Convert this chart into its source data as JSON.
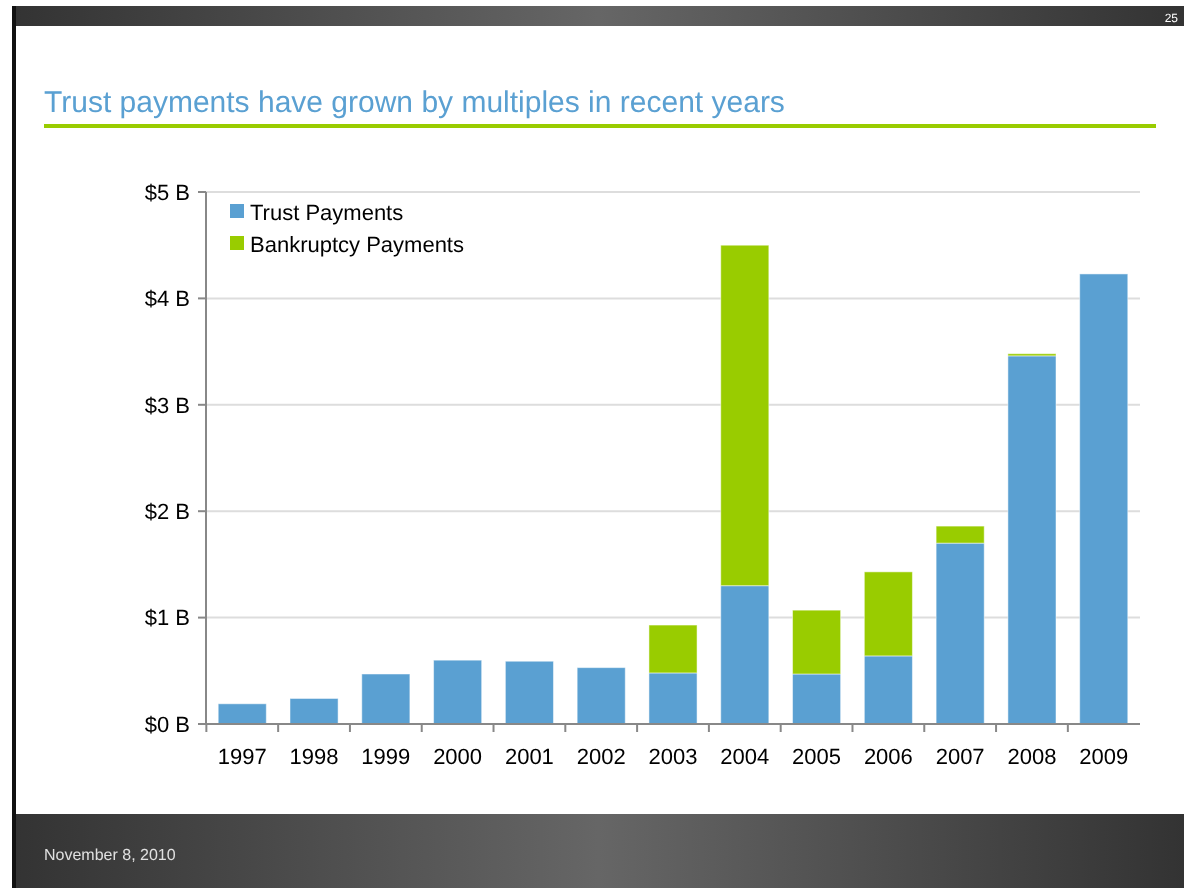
{
  "chart_data": {
    "type": "bar",
    "title": "Trust payments have grown by multiples in recent years",
    "categories": [
      "1997",
      "1998",
      "1999",
      "2000",
      "2001",
      "2002",
      "2003",
      "2004",
      "2005",
      "2006",
      "2007",
      "2008",
      "2009"
    ],
    "series": [
      {
        "name": "Trust Payments",
        "color": "#5aa0d2",
        "values": [
          0.19,
          0.24,
          0.47,
          0.6,
          0.59,
          0.53,
          0.48,
          1.3,
          0.47,
          0.64,
          1.7,
          3.46,
          4.23
        ]
      },
      {
        "name": "Bankruptcy Payments",
        "color": "#99cc00",
        "values": [
          null,
          null,
          null,
          null,
          null,
          null,
          0.45,
          3.2,
          0.6,
          0.79,
          0.16,
          0.02,
          null
        ]
      }
    ],
    "stacked": true,
    "ylim": [
      0,
      5
    ],
    "yticks": [
      {
        "value": 0,
        "label": "$0 B"
      },
      {
        "value": 1,
        "label": "$1 B"
      },
      {
        "value": 2,
        "label": "$2 B"
      },
      {
        "value": 3,
        "label": "$3 B"
      },
      {
        "value": 4,
        "label": "$4 B"
      },
      {
        "value": 5,
        "label": "$5 B"
      }
    ],
    "grid": "y",
    "legend": "top left",
    "annotations": [
      "25",
      "November 8, 2010"
    ]
  }
}
